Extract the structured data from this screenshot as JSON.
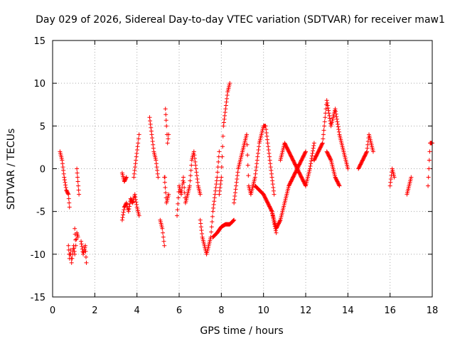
{
  "chart_data": {
    "type": "scatter",
    "title": "Day 029 of 2026, Sidereal Day-to-day VTEC variation (SDTVAR) for receiver maw1",
    "xlabel": "GPS time / hours",
    "ylabel": "SDTVAR / TECUs",
    "xlim": [
      0,
      18
    ],
    "ylim": [
      -15,
      15
    ],
    "xticks": [
      0,
      2,
      4,
      6,
      8,
      10,
      12,
      14,
      16,
      18
    ],
    "yticks": [
      -15,
      -10,
      -5,
      0,
      5,
      10,
      15
    ],
    "grid": true,
    "marker": "+",
    "series": [
      {
        "name": "SDTVAR",
        "color": "#ff0000",
        "segments": [
          {
            "x": [
              0.35,
              0.45,
              0.55,
              0.65,
              0.75,
              0.8
            ],
            "y": [
              2,
              1,
              -1,
              -2.5,
              -3,
              -4.5
            ]
          },
          {
            "x": [
              0.75,
              0.8,
              0.85,
              0.9,
              0.95,
              1.0,
              1.05
            ],
            "y": [
              -9,
              -10.5,
              -9.5,
              -11,
              -10,
              -9,
              -10
            ]
          },
          {
            "x": [
              1.05,
              1.1,
              1.15,
              1.2
            ],
            "y": [
              -7,
              -9,
              -7.5,
              -8
            ]
          },
          {
            "x": [
              1.15,
              1.2,
              1.25
            ],
            "y": [
              0,
              -1.5,
              -3
            ]
          },
          {
            "x": [
              1.35,
              1.45,
              1.55,
              1.6
            ],
            "y": [
              -8.5,
              -10,
              -9,
              -11
            ]
          },
          {
            "x": [
              3.3,
              3.4,
              3.5,
              3.6,
              3.7,
              3.8,
              3.9,
              4.0,
              4.1
            ],
            "y": [
              -6,
              -4.5,
              -4,
              -5,
              -3.5,
              -4,
              -3,
              -4.5,
              -5.5
            ]
          },
          {
            "x": [
              3.3,
              3.4,
              3.5
            ],
            "y": [
              -0.5,
              -1.5,
              -1
            ]
          },
          {
            "x": [
              3.85,
              3.95,
              4.05,
              4.1
            ],
            "y": [
              -1,
              1,
              3,
              4
            ]
          },
          {
            "x": [
              4.6,
              4.7,
              4.8,
              4.9,
              5.0
            ],
            "y": [
              6,
              4,
              2,
              1,
              -1
            ]
          },
          {
            "x": [
              5.1,
              5.2,
              5.25,
              5.3,
              5.35,
              5.4,
              5.45,
              5.5
            ],
            "y": [
              -6,
              -7,
              -8,
              -9,
              7,
              5,
              3,
              4
            ]
          },
          {
            "x": [
              5.3,
              5.4,
              5.5
            ],
            "y": [
              -1,
              -4,
              -3
            ]
          },
          {
            "x": [
              5.9,
              6.0,
              6.1,
              6.2,
              6.3,
              6.4,
              6.5,
              6.6,
              6.7,
              6.8,
              6.9,
              7.0
            ],
            "y": [
              -5.5,
              -2,
              -3,
              -1,
              -4,
              -3,
              -2,
              1,
              2,
              0,
              -2,
              -3
            ]
          },
          {
            "x": [
              7.0,
              7.1,
              7.2,
              7.3,
              7.4,
              7.5,
              7.6,
              7.7,
              7.8,
              7.9
            ],
            "y": [
              -6,
              -8,
              -9,
              -10,
              -9,
              -8,
              -5,
              -3,
              -1,
              2
            ]
          },
          {
            "x": [
              7.6,
              7.8,
              8.0,
              8.2,
              8.4,
              8.6
            ],
            "y": [
              -8,
              -7.5,
              -6.8,
              -6.5,
              -6.5,
              -6
            ]
          },
          {
            "x": [
              7.9,
              8.0,
              8.1,
              8.2,
              8.3,
              8.4
            ],
            "y": [
              -3,
              -1,
              5,
              7,
              9,
              10
            ]
          },
          {
            "x": [
              8.6,
              8.7,
              8.8,
              8.9,
              9.0,
              9.1,
              9.2,
              9.3,
              9.4,
              9.5
            ],
            "y": [
              -4,
              -2,
              0,
              1,
              2,
              3,
              4,
              -2,
              -3,
              -2
            ]
          },
          {
            "x": [
              9.5,
              9.6,
              9.7,
              9.8,
              9.9,
              10.0,
              10.1,
              10.2,
              10.3,
              10.4,
              10.5
            ],
            "y": [
              -2,
              -1,
              1,
              3,
              4,
              5,
              5,
              3,
              1,
              -1,
              -3
            ]
          },
          {
            "x": [
              9.6,
              9.8,
              10.0,
              10.2,
              10.4,
              10.6
            ],
            "y": [
              -2,
              -2.5,
              -3,
              -4,
              -5,
              -7.5
            ]
          },
          {
            "x": [
              10.4,
              10.6,
              10.8,
              11.0,
              11.2,
              11.4,
              11.6,
              11.8,
              12.0
            ],
            "y": [
              -5,
              -7,
              -6,
              -4,
              -2,
              -1,
              0,
              1,
              2
            ]
          },
          {
            "x": [
              10.8,
              11.0,
              11.2,
              11.4,
              11.6,
              11.8,
              12.0,
              12.2,
              12.4
            ],
            "y": [
              1,
              3,
              2,
              1,
              0,
              -1,
              -2,
              0,
              3
            ]
          },
          {
            "x": [
              12.4,
              12.6,
              12.8,
              13.0,
              13.2,
              13.4,
              13.6,
              13.8,
              14.0
            ],
            "y": [
              1,
              2,
              3,
              8,
              5,
              7,
              4,
              2,
              0
            ]
          },
          {
            "x": [
              13.0,
              13.2,
              13.4,
              13.6
            ],
            "y": [
              2,
              1,
              -1,
              -2
            ]
          },
          {
            "x": [
              14.5,
              14.7,
              14.9,
              15.0,
              15.1,
              15.2
            ],
            "y": [
              0,
              1,
              2,
              4,
              3,
              2
            ]
          },
          {
            "x": [
              16.0,
              16.1,
              16.2
            ],
            "y": [
              -2,
              0,
              -1
            ]
          },
          {
            "x": [
              16.8,
              16.9,
              17.0
            ],
            "y": [
              -3,
              -2,
              -1
            ]
          },
          {
            "x": [
              17.8,
              17.9,
              18.0
            ],
            "y": [
              -2,
              3,
              3
            ]
          }
        ]
      }
    ]
  }
}
